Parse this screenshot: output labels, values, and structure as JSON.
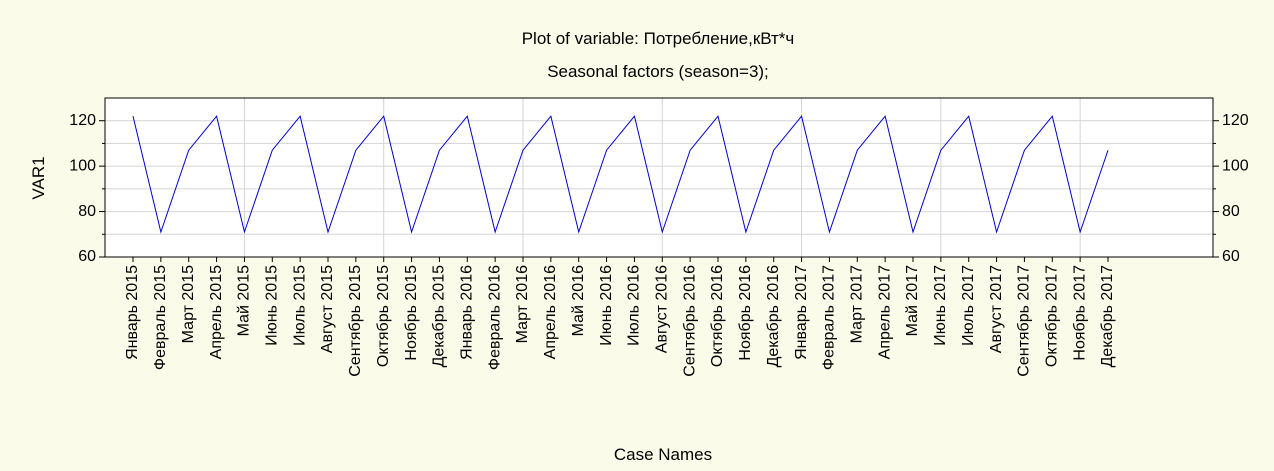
{
  "chart_data": {
    "type": "line",
    "title": "Plot of variable: Потребление,кВт*ч",
    "subtitle": "Seasonal factors (season=3);",
    "y_label": "VAR1",
    "x_label": "Case Names",
    "categories": [
      "Январь 2015",
      "Февраль 2015",
      "Март 2015",
      "Апрель 2015",
      "Май 2015",
      "Июнь 2015",
      "Июль 2015",
      "Август 2015",
      "Сентябрь 2015",
      "Октябрь 2015",
      "Ноябрь 2015",
      "Декабрь 2015",
      "Январь 2016",
      "Февраль 2016",
      "Март 2016",
      "Апрель 2016",
      "Май 2016",
      "Июнь 2016",
      "Июль 2016",
      "Август 2016",
      "Сентябрь 2016",
      "Октябрь 2016",
      "Ноябрь 2016",
      "Декабрь 2016",
      "Январь 2017",
      "Февраль 2017",
      "Март 2017",
      "Апрель 2017",
      "Май 2017",
      "Июнь 2017",
      "Июль 2017",
      "Август 2017",
      "Сентябрь 2017",
      "Октябрь 2017",
      "Ноябрь 2017",
      "Декабрь 2017"
    ],
    "series": [
      {
        "name": "VAR1",
        "color": "#0000cc",
        "values": [
          122,
          71,
          107,
          122,
          71,
          107,
          122,
          71,
          107,
          122,
          71,
          107,
          122,
          71,
          107,
          122,
          71,
          107,
          122,
          71,
          107,
          122,
          71,
          107,
          122,
          71,
          107,
          122,
          71,
          107,
          122,
          71,
          107,
          122,
          71,
          107
        ]
      }
    ],
    "ylim": [
      60,
      130
    ],
    "yticks": [
      60,
      80,
      100,
      120
    ],
    "minor_yticks": [
      70,
      90,
      110
    ],
    "grid": true
  }
}
